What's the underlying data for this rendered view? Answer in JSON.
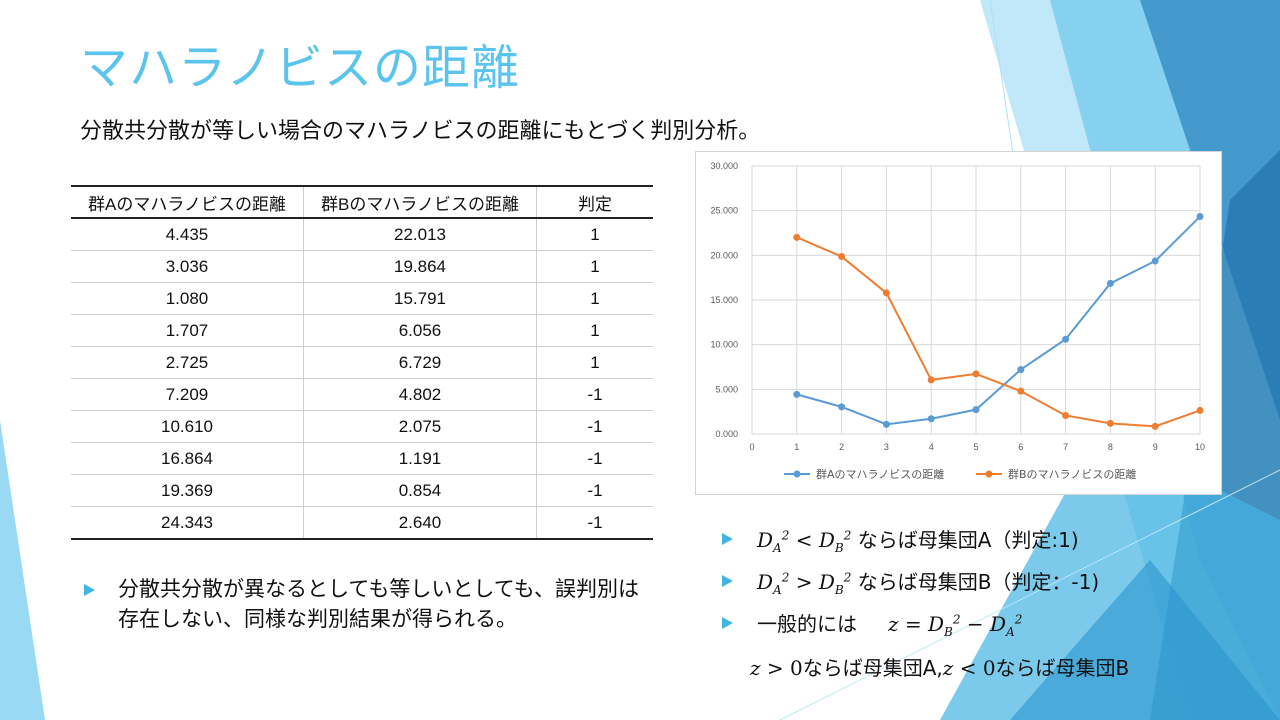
{
  "slide": {
    "title": "マハラノビスの距離",
    "subtitle": "分散共分散が等しい場合のマハラノビスの距離にもとづく判別分析。"
  },
  "table": {
    "headers": [
      "群Aのマハラノビスの距離",
      "群Bのマハラノビスの距離",
      "判定"
    ],
    "rows": [
      [
        "4.435",
        "22.013",
        "1"
      ],
      [
        "3.036",
        "19.864",
        "1"
      ],
      [
        "1.080",
        "15.791",
        "1"
      ],
      [
        "1.707",
        "6.056",
        "1"
      ],
      [
        "2.725",
        "6.729",
        "1"
      ],
      [
        "7.209",
        "4.802",
        "-1"
      ],
      [
        "10.610",
        "2.075",
        "-1"
      ],
      [
        "16.864",
        "1.191",
        "-1"
      ],
      [
        "19.369",
        "0.854",
        "-1"
      ],
      [
        "24.343",
        "2.640",
        "-1"
      ]
    ]
  },
  "bullets_left": [
    "分散共分散が異なるとしても等しいとしても、誤判別は存在しない、同様な判別結果が得られる。"
  ],
  "bullets_right": {
    "b1_suffix": " ならば母集団A（判定:1)",
    "b2_suffix": " ならば母集団B（判定：-1)",
    "b3_prefix": "一般的には",
    "b4_text_a": "ならば母集団A,",
    "b4_text_b": "ならば母集団B",
    "zero": "0"
  },
  "colors": {
    "accent": "#5bc4ec",
    "seriesA": "#5b9bd5",
    "seriesB": "#ed7d31"
  },
  "icons": {
    "bullet": "triangle-bullet-icon"
  },
  "chart_data": {
    "type": "line",
    "x": [
      1,
      2,
      3,
      4,
      5,
      6,
      7,
      8,
      9,
      10
    ],
    "series": [
      {
        "name": "群Aのマハラノビスの距離",
        "values": [
          4.435,
          3.036,
          1.08,
          1.707,
          2.725,
          7.209,
          10.61,
          16.864,
          19.369,
          24.343
        ]
      },
      {
        "name": "群Bのマハラノビスの距離",
        "values": [
          22.013,
          19.864,
          15.791,
          6.056,
          6.729,
          4.802,
          2.075,
          1.191,
          0.854,
          2.64
        ]
      }
    ],
    "xlim": [
      0,
      10
    ],
    "ylim": [
      0,
      30
    ],
    "x_ticks": [
      "0",
      "1",
      "2",
      "3",
      "4",
      "5",
      "6",
      "7",
      "8",
      "9",
      "10"
    ],
    "y_ticks": [
      "0.000",
      "5.000",
      "10.000",
      "15.000",
      "20.000",
      "25.000",
      "30.000"
    ],
    "grid": true,
    "legend": "bottom"
  }
}
